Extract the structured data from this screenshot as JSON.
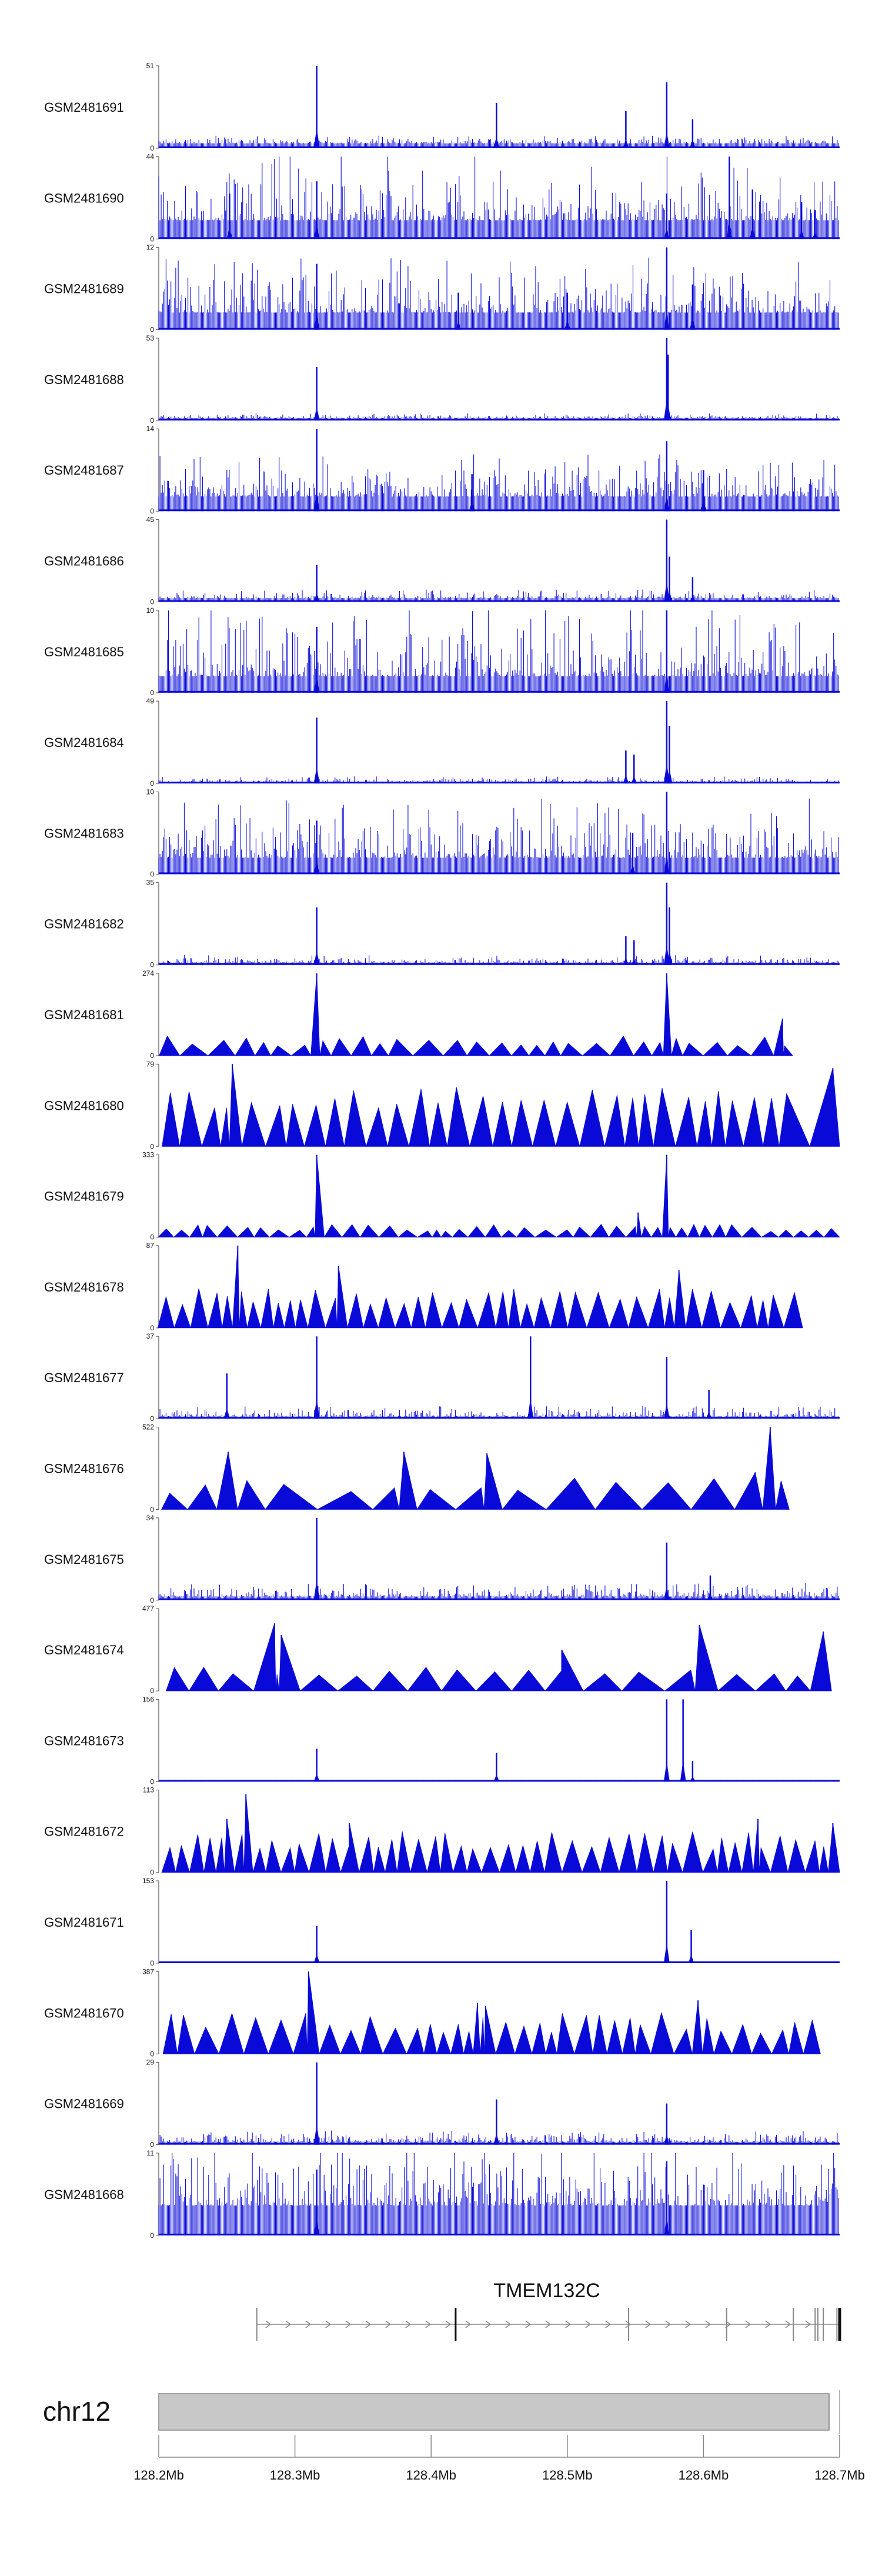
{
  "chart_data": {
    "type": "genome-browser-coverage",
    "color": "#0a0ad8",
    "chromosome": "chr12",
    "gene": "TMEM132C",
    "xrange_mb": [
      128.2,
      128.7
    ],
    "xticks": [
      {
        "value": 128.2,
        "label": "128.2Mb"
      },
      {
        "value": 128.3,
        "label": "128.3Mb"
      },
      {
        "value": 128.4,
        "label": "128.4Mb"
      },
      {
        "value": 128.5,
        "label": "128.5Mb"
      },
      {
        "value": 128.6,
        "label": "128.6Mb"
      },
      {
        "value": 128.7,
        "label": "128.7Mb"
      }
    ],
    "gene_model": {
      "start_mb": 128.272,
      "end_mb": 128.7,
      "exons_mb": [
        128.418,
        128.545,
        128.617,
        128.666,
        128.682,
        128.684,
        128.688,
        128.698,
        128.7
      ]
    },
    "tracks": [
      {
        "label": "GSM2481691",
        "max": 51,
        "min": 0,
        "style": "dense",
        "base": 3,
        "noise": 3,
        "peaks": [
          [
            128.316,
            1.0
          ],
          [
            128.448,
            0.55
          ],
          [
            128.543,
            0.45
          ],
          [
            128.573,
            0.8
          ],
          [
            128.592,
            0.35
          ]
        ]
      },
      {
        "label": "GSM2481690",
        "max": 44,
        "min": 0,
        "style": "dense",
        "base": 10,
        "noise": 22,
        "peaks": [
          [
            128.252,
            0.55
          ],
          [
            128.316,
            0.7
          ],
          [
            128.573,
            0.55
          ],
          [
            128.619,
            1.0
          ],
          [
            128.636,
            0.6
          ],
          [
            128.672,
            0.45
          ],
          [
            128.682,
            0.35
          ]
        ]
      },
      {
        "label": "GSM2481689",
        "max": 12,
        "min": 0,
        "style": "dense",
        "base": 2.5,
        "noise": 5,
        "peaks": [
          [
            128.316,
            0.8
          ],
          [
            128.573,
            1.0
          ],
          [
            128.592,
            0.55
          ],
          [
            128.42,
            0.45
          ],
          [
            128.5,
            0.45
          ]
        ]
      },
      {
        "label": "GSM2481688",
        "max": 53,
        "min": 0,
        "style": "dense",
        "base": 1.5,
        "noise": 2,
        "peaks": [
          [
            128.316,
            0.65
          ],
          [
            128.573,
            1.0
          ],
          [
            128.574,
            0.8
          ]
        ]
      },
      {
        "label": "GSM2481687",
        "max": 14,
        "min": 0,
        "style": "dense",
        "base": 2.5,
        "noise": 4.5,
        "peaks": [
          [
            128.316,
            1.0
          ],
          [
            128.573,
            0.85
          ],
          [
            128.43,
            0.45
          ],
          [
            128.6,
            0.5
          ]
        ]
      },
      {
        "label": "GSM2481686",
        "max": 45,
        "min": 0,
        "style": "dense",
        "base": 2,
        "noise": 3,
        "peaks": [
          [
            128.316,
            0.45
          ],
          [
            128.573,
            1.0
          ],
          [
            128.575,
            0.55
          ],
          [
            128.592,
            0.3
          ]
        ]
      },
      {
        "label": "GSM2481685",
        "max": 10,
        "min": 0,
        "style": "dense",
        "base": 2,
        "noise": 6,
        "peaks": [
          [
            128.316,
            0.8
          ],
          [
            128.573,
            1.0
          ]
        ]
      },
      {
        "label": "GSM2481684",
        "max": 49,
        "min": 0,
        "style": "dense",
        "base": 1,
        "noise": 2,
        "peaks": [
          [
            128.316,
            0.8
          ],
          [
            128.543,
            0.4
          ],
          [
            128.549,
            0.35
          ],
          [
            128.573,
            1.0
          ],
          [
            128.575,
            0.7
          ]
        ]
      },
      {
        "label": "GSM2481683",
        "max": 10,
        "min": 0,
        "style": "dense",
        "base": 2,
        "noise": 4.5,
        "peaks": [
          [
            128.316,
            0.65
          ],
          [
            128.573,
            1.0
          ],
          [
            128.548,
            0.5
          ]
        ]
      },
      {
        "label": "GSM2481682",
        "max": 35,
        "min": 0,
        "style": "dense",
        "base": 1,
        "noise": 2,
        "peaks": [
          [
            128.316,
            0.7
          ],
          [
            128.543,
            0.35
          ],
          [
            128.549,
            0.3
          ],
          [
            128.573,
            1.0
          ],
          [
            128.575,
            0.7
          ]
        ]
      },
      {
        "label": "GSM2481681",
        "max": 274,
        "min": 0,
        "style": "sparse",
        "nPeaks": 30,
        "ampMin": 0.12,
        "ampMax": 0.24,
        "peaks": [
          [
            128.316,
            1.0
          ],
          [
            128.573,
            1.0
          ],
          [
            128.658,
            0.45
          ]
        ]
      },
      {
        "label": "GSM2481680",
        "max": 79,
        "min": 0,
        "style": "sparse",
        "nPeaks": 32,
        "ampMin": 0.45,
        "ampMax": 0.72,
        "peaks": [
          [
            128.254,
            1.0
          ],
          [
            128.695,
            0.95
          ]
        ]
      },
      {
        "label": "GSM2481679",
        "max": 333,
        "min": 0,
        "style": "sparse",
        "nPeaks": 44,
        "ampMin": 0.07,
        "ampMax": 0.16,
        "peaks": [
          [
            128.316,
            1.0
          ],
          [
            128.573,
            1.0
          ],
          [
            128.552,
            0.3
          ]
        ]
      },
      {
        "label": "GSM2481678",
        "max": 87,
        "min": 0,
        "style": "sparse",
        "nPeaks": 40,
        "ampMin": 0.28,
        "ampMax": 0.48,
        "peaks": [
          [
            128.258,
            1.0
          ],
          [
            128.332,
            0.75
          ],
          [
            128.582,
            0.7
          ]
        ]
      },
      {
        "label": "GSM2481677",
        "max": 37,
        "min": 0,
        "style": "dense",
        "base": 1,
        "noise": 3,
        "peaks": [
          [
            128.316,
            1.0
          ],
          [
            128.473,
            1.0
          ],
          [
            128.573,
            0.75
          ],
          [
            128.25,
            0.55
          ],
          [
            128.604,
            0.35
          ]
        ]
      },
      {
        "label": "GSM2481676",
        "max": 522,
        "min": 0,
        "style": "sparse",
        "nPeaks": 14,
        "ampMin": 0.18,
        "ampMax": 0.4,
        "peaks": [
          [
            128.251,
            0.7
          ],
          [
            128.38,
            0.7
          ],
          [
            128.441,
            0.68
          ],
          [
            128.649,
            1.0
          ],
          [
            128.638,
            0.45
          ]
        ]
      },
      {
        "label": "GSM2481675",
        "max": 34,
        "min": 0,
        "style": "dense",
        "base": 1.5,
        "noise": 3.5,
        "peaks": [
          [
            128.316,
            1.0
          ],
          [
            128.573,
            0.7
          ],
          [
            128.605,
            0.3
          ]
        ]
      },
      {
        "label": "GSM2481674",
        "max": 477,
        "min": 0,
        "style": "sparse",
        "nPeaks": 18,
        "ampMin": 0.18,
        "ampMax": 0.3,
        "peaks": [
          [
            128.285,
            0.82
          ],
          [
            128.29,
            0.68
          ],
          [
            128.496,
            0.5
          ],
          [
            128.597,
            0.8
          ],
          [
            128.688,
            0.72
          ]
        ]
      },
      {
        "label": "GSM2481673",
        "max": 156,
        "min": 0,
        "style": "dense",
        "base": 0.5,
        "noise": 1.5,
        "peaks": [
          [
            128.316,
            0.4
          ],
          [
            128.448,
            0.35
          ],
          [
            128.573,
            1.0
          ],
          [
            128.585,
            1.0
          ],
          [
            128.592,
            0.25
          ]
        ]
      },
      {
        "label": "GSM2481672",
        "max": 113,
        "min": 0,
        "style": "sparse",
        "nPeaks": 46,
        "ampMin": 0.28,
        "ampMax": 0.5,
        "peaks": [
          [
            128.25,
            0.65
          ],
          [
            128.264,
            0.95
          ],
          [
            128.34,
            0.6
          ],
          [
            128.64,
            0.65
          ],
          [
            128.695,
            0.6
          ]
        ]
      },
      {
        "label": "GSM2481671",
        "max": 153,
        "min": 0,
        "style": "dense",
        "base": 0.5,
        "noise": 1.5,
        "peaks": [
          [
            128.316,
            0.45
          ],
          [
            128.573,
            1.0
          ],
          [
            128.591,
            0.4
          ]
        ]
      },
      {
        "label": "GSM2481670",
        "max": 387,
        "min": 0,
        "style": "sparse",
        "nPeaks": 36,
        "ampMin": 0.25,
        "ampMax": 0.5,
        "peaks": [
          [
            128.31,
            1.0
          ],
          [
            128.434,
            0.62
          ],
          [
            128.44,
            0.58
          ],
          [
            128.596,
            0.65
          ]
        ]
      },
      {
        "label": "GSM2481669",
        "max": 29,
        "min": 0,
        "style": "dense",
        "base": 1,
        "noise": 2.5,
        "peaks": [
          [
            128.316,
            1.0
          ],
          [
            128.448,
            0.55
          ],
          [
            128.573,
            0.5
          ]
        ]
      },
      {
        "label": "GSM2481668",
        "max": 11,
        "min": 0,
        "style": "dense",
        "base": 4,
        "noise": 5.5,
        "peaks": [
          [
            128.316,
            0.8
          ],
          [
            128.573,
            0.9
          ]
        ]
      }
    ]
  }
}
